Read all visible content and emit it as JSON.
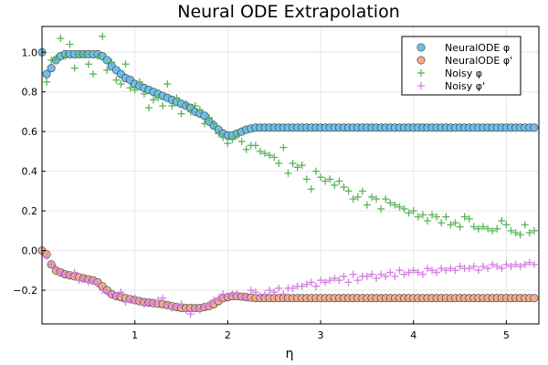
{
  "chart_data": {
    "type": "scatter",
    "title": "Neural ODE Extrapolation",
    "xlabel": "η",
    "ylabel": "",
    "xlim": [
      0.0,
      5.35
    ],
    "ylim": [
      -0.37,
      1.13
    ],
    "xticks": [
      1,
      2,
      3,
      4,
      5
    ],
    "yticks": [
      -0.2,
      0.0,
      0.2,
      0.4,
      0.6,
      0.8,
      1.0
    ],
    "xtick_labels": [
      "1",
      "2",
      "3",
      "4",
      "5"
    ],
    "ytick_labels": [
      "−0.2",
      "0.0",
      "0.2",
      "0.4",
      "0.6",
      "0.8",
      "1.0"
    ],
    "grid": true,
    "legend_position": "top-right",
    "series": [
      {
        "name": "NeuralODE φ",
        "marker": "circle",
        "color": "#6fbfe8",
        "x": [
          0.0,
          0.05,
          0.1,
          0.15,
          0.2,
          0.25,
          0.3,
          0.35,
          0.4,
          0.45,
          0.5,
          0.55,
          0.6,
          0.65,
          0.7,
          0.75,
          0.8,
          0.85,
          0.9,
          0.95,
          1.0,
          1.05,
          1.1,
          1.15,
          1.2,
          1.25,
          1.3,
          1.35,
          1.4,
          1.45,
          1.5,
          1.55,
          1.6,
          1.65,
          1.7,
          1.75,
          1.8,
          1.85,
          1.9,
          1.95,
          2.0,
          2.05,
          2.1,
          2.15,
          2.2,
          2.25,
          2.3,
          2.35,
          2.4,
          2.45,
          2.5,
          2.55,
          2.6,
          2.65,
          2.7,
          2.75,
          2.8,
          2.85,
          2.9,
          2.95,
          3.0,
          3.05,
          3.1,
          3.15,
          3.2,
          3.25,
          3.3,
          3.35,
          3.4,
          3.45,
          3.5,
          3.55,
          3.6,
          3.65,
          3.7,
          3.75,
          3.8,
          3.85,
          3.9,
          3.95,
          4.0,
          4.05,
          4.1,
          4.15,
          4.2,
          4.25,
          4.3,
          4.35,
          4.4,
          4.45,
          4.5,
          4.55,
          4.6,
          4.65,
          4.7,
          4.75,
          4.8,
          4.85,
          4.9,
          4.95,
          5.0,
          5.05,
          5.1,
          5.15,
          5.2,
          5.25,
          5.3
        ],
        "y": [
          1.0,
          0.89,
          0.92,
          0.96,
          0.98,
          0.99,
          0.99,
          0.99,
          0.99,
          0.99,
          0.99,
          0.99,
          0.99,
          0.98,
          0.96,
          0.93,
          0.91,
          0.89,
          0.87,
          0.86,
          0.84,
          0.83,
          0.82,
          0.81,
          0.8,
          0.79,
          0.78,
          0.77,
          0.76,
          0.75,
          0.74,
          0.73,
          0.72,
          0.7,
          0.69,
          0.68,
          0.65,
          0.63,
          0.61,
          0.59,
          0.58,
          0.58,
          0.59,
          0.6,
          0.61,
          0.615,
          0.62,
          0.62,
          0.62,
          0.62,
          0.62,
          0.62,
          0.62,
          0.62,
          0.62,
          0.62,
          0.62,
          0.62,
          0.62,
          0.62,
          0.62,
          0.62,
          0.62,
          0.62,
          0.62,
          0.62,
          0.62,
          0.62,
          0.62,
          0.62,
          0.62,
          0.62,
          0.62,
          0.62,
          0.62,
          0.62,
          0.62,
          0.62,
          0.62,
          0.62,
          0.62,
          0.62,
          0.62,
          0.62,
          0.62,
          0.62,
          0.62,
          0.62,
          0.62,
          0.62,
          0.62,
          0.62,
          0.62,
          0.62,
          0.62,
          0.62,
          0.62,
          0.62,
          0.62,
          0.62,
          0.62,
          0.62,
          0.62,
          0.62,
          0.62,
          0.62,
          0.62
        ]
      },
      {
        "name": "NeuralODE φ'",
        "marker": "circle",
        "color": "#f0ac8c",
        "x": [
          0.0,
          0.05,
          0.1,
          0.15,
          0.2,
          0.25,
          0.3,
          0.35,
          0.4,
          0.45,
          0.5,
          0.55,
          0.6,
          0.65,
          0.7,
          0.75,
          0.8,
          0.85,
          0.9,
          0.95,
          1.0,
          1.05,
          1.1,
          1.15,
          1.2,
          1.25,
          1.3,
          1.35,
          1.4,
          1.45,
          1.5,
          1.55,
          1.6,
          1.65,
          1.7,
          1.75,
          1.8,
          1.85,
          1.9,
          1.95,
          2.0,
          2.05,
          2.1,
          2.15,
          2.2,
          2.25,
          2.3,
          2.35,
          2.4,
          2.45,
          2.5,
          2.55,
          2.6,
          2.65,
          2.7,
          2.75,
          2.8,
          2.85,
          2.9,
          2.95,
          3.0,
          3.05,
          3.1,
          3.15,
          3.2,
          3.25,
          3.3,
          3.35,
          3.4,
          3.45,
          3.5,
          3.55,
          3.6,
          3.65,
          3.7,
          3.75,
          3.8,
          3.85,
          3.9,
          3.95,
          4.0,
          4.05,
          4.1,
          4.15,
          4.2,
          4.25,
          4.3,
          4.35,
          4.4,
          4.45,
          4.5,
          4.55,
          4.6,
          4.65,
          4.7,
          4.75,
          4.8,
          4.85,
          4.9,
          4.95,
          5.0,
          5.05,
          5.1,
          5.15,
          5.2,
          5.25,
          5.3
        ],
        "y": [
          0.0,
          -0.02,
          -0.07,
          -0.1,
          -0.11,
          -0.12,
          -0.125,
          -0.13,
          -0.135,
          -0.14,
          -0.145,
          -0.15,
          -0.16,
          -0.18,
          -0.2,
          -0.22,
          -0.23,
          -0.235,
          -0.24,
          -0.245,
          -0.25,
          -0.255,
          -0.26,
          -0.262,
          -0.265,
          -0.268,
          -0.27,
          -0.275,
          -0.28,
          -0.285,
          -0.29,
          -0.29,
          -0.29,
          -0.29,
          -0.29,
          -0.285,
          -0.28,
          -0.27,
          -0.255,
          -0.24,
          -0.235,
          -0.23,
          -0.23,
          -0.232,
          -0.235,
          -0.237,
          -0.24,
          -0.24,
          -0.24,
          -0.24,
          -0.24,
          -0.24,
          -0.24,
          -0.24,
          -0.24,
          -0.24,
          -0.24,
          -0.24,
          -0.24,
          -0.24,
          -0.24,
          -0.24,
          -0.24,
          -0.24,
          -0.24,
          -0.24,
          -0.24,
          -0.24,
          -0.24,
          -0.24,
          -0.24,
          -0.24,
          -0.24,
          -0.24,
          -0.24,
          -0.24,
          -0.24,
          -0.24,
          -0.24,
          -0.24,
          -0.24,
          -0.24,
          -0.24,
          -0.24,
          -0.24,
          -0.24,
          -0.24,
          -0.24,
          -0.24,
          -0.24,
          -0.24,
          -0.24,
          -0.24,
          -0.24,
          -0.24,
          -0.24,
          -0.24,
          -0.24,
          -0.24,
          -0.24,
          -0.24,
          -0.24,
          -0.24,
          -0.24,
          -0.24,
          -0.24,
          -0.24
        ]
      },
      {
        "name": "Noisy φ",
        "marker": "plus",
        "color": "#5ab55a",
        "x": [
          0.05,
          0.1,
          0.15,
          0.2,
          0.25,
          0.3,
          0.35,
          0.4,
          0.45,
          0.5,
          0.55,
          0.6,
          0.65,
          0.7,
          0.75,
          0.8,
          0.85,
          0.9,
          0.95,
          1.0,
          1.05,
          1.1,
          1.15,
          1.2,
          1.25,
          1.3,
          1.35,
          1.4,
          1.45,
          1.5,
          1.55,
          1.6,
          1.65,
          1.7,
          1.75,
          1.8,
          1.85,
          1.9,
          1.95,
          2.0,
          2.05,
          2.1,
          2.15,
          2.2,
          2.25,
          2.3,
          2.35,
          2.4,
          2.45,
          2.5,
          2.55,
          2.6,
          2.65,
          2.7,
          2.75,
          2.8,
          2.85,
          2.9,
          2.95,
          3.0,
          3.05,
          3.1,
          3.15,
          3.2,
          3.25,
          3.3,
          3.35,
          3.4,
          3.45,
          3.5,
          3.55,
          3.6,
          3.65,
          3.7,
          3.75,
          3.8,
          3.85,
          3.9,
          3.95,
          4.0,
          4.05,
          4.1,
          4.15,
          4.2,
          4.25,
          4.3,
          4.35,
          4.4,
          4.45,
          4.5,
          4.55,
          4.6,
          4.65,
          4.7,
          4.75,
          4.8,
          4.85,
          4.9,
          4.95,
          5.0,
          5.05,
          5.1,
          5.15,
          5.2,
          5.25,
          5.3
        ],
        "y": [
          0.85,
          0.96,
          0.97,
          1.07,
          0.98,
          1.04,
          0.92,
          0.99,
          0.99,
          0.94,
          0.89,
          0.98,
          1.08,
          0.91,
          0.95,
          0.86,
          0.84,
          0.94,
          0.82,
          0.81,
          0.85,
          0.79,
          0.72,
          0.76,
          0.77,
          0.73,
          0.84,
          0.73,
          0.77,
          0.69,
          0.74,
          0.7,
          0.73,
          0.71,
          0.64,
          0.67,
          0.64,
          0.59,
          0.57,
          0.54,
          0.56,
          0.58,
          0.55,
          0.51,
          0.53,
          0.53,
          0.5,
          0.49,
          0.48,
          0.47,
          0.44,
          0.52,
          0.39,
          0.44,
          0.42,
          0.43,
          0.36,
          0.31,
          0.4,
          0.37,
          0.35,
          0.36,
          0.33,
          0.35,
          0.32,
          0.3,
          0.26,
          0.27,
          0.3,
          0.23,
          0.27,
          0.26,
          0.21,
          0.26,
          0.24,
          0.23,
          0.22,
          0.21,
          0.19,
          0.2,
          0.17,
          0.18,
          0.15,
          0.18,
          0.17,
          0.14,
          0.17,
          0.13,
          0.14,
          0.12,
          0.17,
          0.16,
          0.12,
          0.11,
          0.12,
          0.11,
          0.1,
          0.11,
          0.15,
          0.13,
          0.1,
          0.09,
          0.08,
          0.13,
          0.09,
          0.1
        ]
      },
      {
        "name": "Noisy φ'",
        "marker": "plus",
        "color": "#d47fe0",
        "x": [
          0.05,
          0.1,
          0.15,
          0.2,
          0.25,
          0.3,
          0.35,
          0.4,
          0.45,
          0.5,
          0.55,
          0.6,
          0.65,
          0.7,
          0.75,
          0.8,
          0.85,
          0.9,
          0.95,
          1.0,
          1.05,
          1.1,
          1.15,
          1.2,
          1.25,
          1.3,
          1.35,
          1.4,
          1.45,
          1.5,
          1.55,
          1.6,
          1.65,
          1.7,
          1.75,
          1.8,
          1.85,
          1.9,
          1.95,
          2.0,
          2.05,
          2.1,
          2.15,
          2.2,
          2.25,
          2.3,
          2.35,
          2.4,
          2.45,
          2.5,
          2.55,
          2.6,
          2.65,
          2.7,
          2.75,
          2.8,
          2.85,
          2.9,
          2.95,
          3.0,
          3.05,
          3.1,
          3.15,
          3.2,
          3.25,
          3.3,
          3.35,
          3.4,
          3.45,
          3.5,
          3.55,
          3.6,
          3.65,
          3.7,
          3.75,
          3.8,
          3.85,
          3.9,
          3.95,
          4.0,
          4.05,
          4.1,
          4.15,
          4.2,
          4.25,
          4.3,
          4.35,
          4.4,
          4.45,
          4.5,
          4.55,
          4.6,
          4.65,
          4.7,
          4.75,
          4.8,
          4.85,
          4.9,
          4.95,
          5.0,
          5.05,
          5.1,
          5.15,
          5.2,
          5.25,
          5.3
        ],
        "y": [
          -0.03,
          -0.07,
          -0.09,
          -0.11,
          -0.12,
          -0.13,
          -0.11,
          -0.15,
          -0.14,
          -0.16,
          -0.15,
          -0.17,
          -0.2,
          -0.21,
          -0.22,
          -0.23,
          -0.21,
          -0.26,
          -0.25,
          -0.24,
          -0.25,
          -0.27,
          -0.26,
          -0.27,
          -0.25,
          -0.24,
          -0.27,
          -0.29,
          -0.28,
          -0.27,
          -0.3,
          -0.32,
          -0.29,
          -0.3,
          -0.28,
          -0.27,
          -0.25,
          -0.24,
          -0.22,
          -0.23,
          -0.22,
          -0.22,
          -0.23,
          -0.24,
          -0.2,
          -0.21,
          -0.23,
          -0.22,
          -0.2,
          -0.21,
          -0.19,
          -0.22,
          -0.19,
          -0.19,
          -0.18,
          -0.18,
          -0.17,
          -0.16,
          -0.18,
          -0.15,
          -0.16,
          -0.15,
          -0.14,
          -0.15,
          -0.13,
          -0.16,
          -0.12,
          -0.15,
          -0.13,
          -0.13,
          -0.12,
          -0.14,
          -0.12,
          -0.13,
          -0.11,
          -0.13,
          -0.1,
          -0.12,
          -0.11,
          -0.1,
          -0.11,
          -0.12,
          -0.09,
          -0.1,
          -0.11,
          -0.09,
          -0.1,
          -0.09,
          -0.1,
          -0.08,
          -0.09,
          -0.09,
          -0.08,
          -0.1,
          -0.08,
          -0.09,
          -0.07,
          -0.08,
          -0.09,
          -0.07,
          -0.08,
          -0.07,
          -0.08,
          -0.07,
          -0.06,
          -0.07
        ]
      }
    ]
  }
}
